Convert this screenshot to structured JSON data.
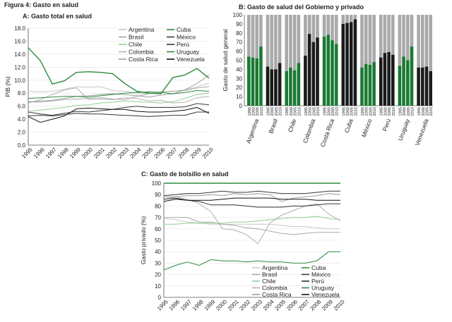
{
  "figure_title": "Figura 4: Gasto en salud",
  "chart_data": [
    {
      "id": "A",
      "type": "line",
      "title": "A: Gasto total en salud",
      "xlabel": "",
      "ylabel": "PIB (%)",
      "ylim": [
        0,
        18
      ],
      "yticks": [
        "18.0",
        "16.0",
        "14.0",
        "12.0",
        "10.0",
        "8.0",
        "6.0",
        "4.0",
        "2.0",
        "0.0"
      ],
      "x": [
        "1995",
        "1996",
        "1997",
        "1998",
        "1999",
        "2000",
        "2001",
        "2002",
        "2003",
        "2004",
        "2005",
        "2006",
        "2007",
        "2008",
        "2009",
        "2010"
      ],
      "legend": [
        [
          "Argentina",
          "Cuba"
        ],
        [
          "Brasil",
          "México"
        ],
        [
          "Chile",
          "Perú"
        ],
        [
          "Colombia",
          "Uruguay"
        ],
        [
          "Costa Rica",
          "Venezuela"
        ]
      ],
      "series": [
        {
          "name": "Argentina",
          "color": "#c8c8c8",
          "width": 1,
          "values": [
            8.3,
            8.2,
            8.3,
            8.6,
            9.0,
            8.9,
            9.0,
            8.4,
            8.3,
            8.0,
            7.9,
            8.1,
            8.3,
            8.5,
            9.0,
            9.5
          ]
        },
        {
          "name": "Brasil",
          "color": "#a8a8a8",
          "width": 1,
          "values": [
            6.7,
            6.6,
            6.8,
            7.0,
            7.1,
            7.2,
            7.3,
            7.1,
            7.0,
            7.5,
            7.9,
            8.2,
            8.3,
            8.4,
            8.8,
            9.0
          ]
        },
        {
          "name": "Chile",
          "color": "#8fcf98",
          "width": 1,
          "values": [
            5.2,
            5.4,
            5.6,
            5.8,
            6.1,
            6.2,
            6.5,
            6.6,
            6.8,
            6.7,
            6.6,
            6.5,
            6.7,
            7.2,
            7.8,
            8.0
          ]
        },
        {
          "name": "Colombia",
          "color": "#b0b0b0",
          "width": 1,
          "values": [
            6.5,
            7.0,
            7.8,
            8.5,
            8.8,
            7.0,
            7.1,
            7.0,
            7.3,
            7.2,
            6.8,
            6.9,
            6.5,
            6.6,
            7.3,
            7.5
          ]
        },
        {
          "name": "Costa Rica",
          "color": "#9ca09c",
          "width": 1,
          "values": [
            6.6,
            6.8,
            6.9,
            7.2,
            7.5,
            7.6,
            7.8,
            7.9,
            7.8,
            7.6,
            7.4,
            7.7,
            7.9,
            8.5,
            9.5,
            10.8
          ]
        },
        {
          "name": "Cuba",
          "color": "#2e8a3e",
          "width": 1.4,
          "values": [
            15.0,
            13.0,
            9.4,
            9.9,
            11.2,
            11.3,
            11.2,
            11.0,
            9.5,
            8.3,
            8.0,
            7.9,
            10.4,
            10.8,
            11.8,
            10.3
          ]
        },
        {
          "name": "México",
          "color": "#3a3a3a",
          "width": 1,
          "values": [
            5.1,
            4.8,
            4.6,
            4.9,
            5.2,
            5.1,
            5.3,
            5.5,
            5.8,
            6.0,
            5.8,
            5.8,
            5.8,
            5.9,
            6.4,
            6.2
          ]
        },
        {
          "name": "Perú",
          "color": "#333333",
          "width": 1,
          "values": [
            4.5,
            4.6,
            4.5,
            4.7,
            4.9,
            4.8,
            4.8,
            4.7,
            4.6,
            4.5,
            4.4,
            4.5,
            4.6,
            4.6,
            5.1,
            5.1
          ]
        },
        {
          "name": "Uruguay",
          "color": "#2e8a3e",
          "width": 1,
          "values": [
            7.2,
            7.3,
            7.4,
            7.5,
            7.5,
            7.4,
            7.6,
            7.8,
            8.0,
            8.1,
            8.2,
            8.1,
            7.9,
            8.1,
            8.4,
            8.3
          ]
        },
        {
          "name": "Venezuela",
          "color": "#111111",
          "width": 1,
          "values": [
            4.4,
            3.5,
            4.0,
            4.5,
            5.6,
            5.7,
            5.6,
            5.5,
            5.5,
            5.2,
            5.1,
            5.1,
            5.2,
            5.4,
            5.8,
            4.9
          ]
        }
      ]
    },
    {
      "id": "B",
      "type": "bar",
      "stacked": true,
      "title": "B: Gasto de salud del Gobierno y privado",
      "ylabel": "Gasto de salud general",
      "ylim": [
        0,
        100
      ],
      "yticks": [
        "100",
        "90",
        "80",
        "70",
        "60",
        "50",
        "40",
        "30",
        "20",
        "10",
        "0"
      ],
      "years": [
        "1995",
        "2000",
        "2005",
        "2010"
      ],
      "private_color": "#a9a9a9",
      "public_colors": {
        "green": "#1a7a32",
        "black": "#1a1a1a"
      },
      "public_tops": {
        "green": "#8acb94",
        "black": "#b5b5b5"
      },
      "countries": [
        {
          "name": "Argentina",
          "style": "green",
          "values": [
            54,
            53,
            52,
            65
          ]
        },
        {
          "name": "Brasil",
          "style": "black",
          "values": [
            43,
            40,
            40,
            47
          ]
        },
        {
          "name": "Chile",
          "style": "green",
          "values": [
            38,
            42,
            39,
            47
          ]
        },
        {
          "name": "Colombia",
          "style": "black",
          "values": [
            55,
            79,
            70,
            75
          ]
        },
        {
          "name": "Costa Rica",
          "style": "green",
          "values": [
            76,
            78,
            72,
            68
          ]
        },
        {
          "name": "Cuba",
          "style": "black",
          "values": [
            90,
            91,
            92,
            95
          ]
        },
        {
          "name": "México",
          "style": "green",
          "values": [
            42,
            46,
            45,
            48
          ]
        },
        {
          "name": "Perú",
          "style": "black",
          "values": [
            53,
            58,
            59,
            56
          ]
        },
        {
          "name": "Uruguay",
          "style": "green",
          "values": [
            44,
            54,
            50,
            65
          ]
        },
        {
          "name": "Venezuela",
          "style": "black",
          "values": [
            42,
            42,
            43,
            38
          ]
        }
      ]
    },
    {
      "id": "C",
      "type": "line",
      "title": "C: Gasto de bolsillo en salud",
      "xlabel": "",
      "ylabel": "Gasto privado (%)",
      "ylim": [
        0,
        100
      ],
      "yticks": [
        "100",
        "90",
        "80",
        "70",
        "60",
        "50",
        "40",
        "30",
        "20",
        "10",
        "0"
      ],
      "x": [
        "1995",
        "1996",
        "1997",
        "1998",
        "1999",
        "2000",
        "2001",
        "2002",
        "2003",
        "2004",
        "2005",
        "2006",
        "2007",
        "2008",
        "2009",
        "2010"
      ],
      "legend": [
        [
          "Argentina",
          "Cuba"
        ],
        [
          "Brasil",
          "México"
        ],
        [
          "Chile",
          "Perú"
        ],
        [
          "Colombia",
          "Uruguay"
        ],
        [
          "Costa Rica",
          "Venezuela"
        ]
      ],
      "series": [
        {
          "name": "Argentina",
          "color": "#c8c8c8",
          "width": 1,
          "values": [
            69,
            68,
            66,
            65,
            64,
            64,
            64,
            64,
            64,
            64,
            63,
            62,
            62,
            61,
            60,
            60
          ]
        },
        {
          "name": "Brasil",
          "color": "#a8a8a8",
          "width": 1,
          "values": [
            70,
            70,
            70,
            66,
            66,
            64,
            63,
            61,
            60,
            58,
            56,
            55,
            56,
            57,
            57,
            57
          ]
        },
        {
          "name": "Chile",
          "color": "#8fcf98",
          "width": 1,
          "values": [
            64,
            64,
            65,
            65,
            65,
            65,
            66,
            66,
            67,
            68,
            69,
            70,
            70,
            71,
            69,
            68
          ]
        },
        {
          "name": "Colombia",
          "color": "#b0b0b0",
          "width": 1,
          "values": [
            86,
            88,
            86,
            82,
            75,
            60,
            59,
            55,
            47,
            65,
            72,
            76,
            80,
            82,
            73,
            67
          ]
        },
        {
          "name": "Costa Rica",
          "color": "#9ca09c",
          "width": 1,
          "values": [
            88,
            88,
            89,
            89,
            90,
            89,
            91,
            90,
            91,
            90,
            84,
            87,
            88,
            89,
            91,
            90
          ]
        },
        {
          "name": "Cuba",
          "color": "#2e8a3e",
          "width": 1.4,
          "values": [
            100,
            100,
            100,
            100,
            100,
            100,
            100,
            100,
            100,
            100,
            100,
            100,
            100,
            100,
            100,
            100
          ]
        },
        {
          "name": "México",
          "color": "#3a3a3a",
          "width": 1,
          "values": [
            89,
            90,
            91,
            91,
            92,
            93,
            92,
            92,
            93,
            92,
            91,
            91,
            91,
            92,
            93,
            93
          ]
        },
        {
          "name": "Perú",
          "color": "#333333",
          "width": 1,
          "values": [
            86,
            87,
            85,
            84,
            81,
            81,
            81,
            80,
            79,
            79,
            79,
            80,
            80,
            81,
            82,
            82
          ]
        },
        {
          "name": "Uruguay",
          "color": "#2e8a3e",
          "width": 1,
          "values": [
            24,
            28,
            31,
            28,
            33,
            32,
            32,
            31,
            32,
            31,
            31,
            30,
            30,
            32,
            40,
            40
          ]
        },
        {
          "name": "Venezuela",
          "color": "#111111",
          "width": 1,
          "values": [
            84,
            86,
            85,
            85,
            85,
            86,
            87,
            87,
            87,
            87,
            86,
            86,
            86,
            85,
            85,
            85
          ]
        }
      ]
    }
  ]
}
